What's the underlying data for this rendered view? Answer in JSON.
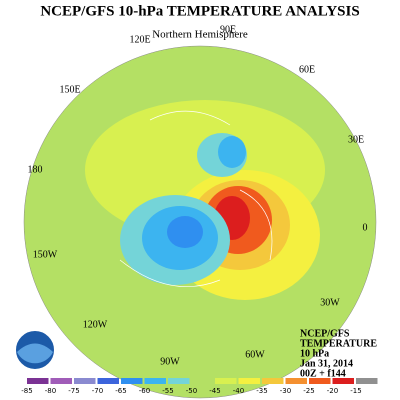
{
  "title": "NCEP/GFS 10-hPa TEMPERATURE ANALYSIS",
  "subtitle": "Northern Hemisphere",
  "longitude_labels": [
    "90E",
    "120E",
    "60E",
    "150E",
    "30E",
    "180",
    "0",
    "150W",
    "30W",
    "120W",
    "60W",
    "90W"
  ],
  "info": [
    "NCEP/GFS",
    "TEMPERATURE",
    "10 hPa",
    "Jan 31, 2014",
    "00Z + f144"
  ],
  "colorbar": {
    "ticks": [
      -85,
      -80,
      -75,
      -70,
      -65,
      -60,
      -55,
      -50,
      -45,
      -40,
      -35,
      -30,
      -25,
      -20,
      -15
    ],
    "colors": [
      "#7b3294",
      "#a05cb8",
      "#8a8ad0",
      "#3c64dc",
      "#2f8ff0",
      "#3cb4f0",
      "#74d4d8",
      "#b4e064",
      "#d8f050",
      "#f4f040",
      "#f4c83c",
      "#f49030",
      "#f05a1e",
      "#dc1e1e",
      "#909090"
    ]
  }
}
